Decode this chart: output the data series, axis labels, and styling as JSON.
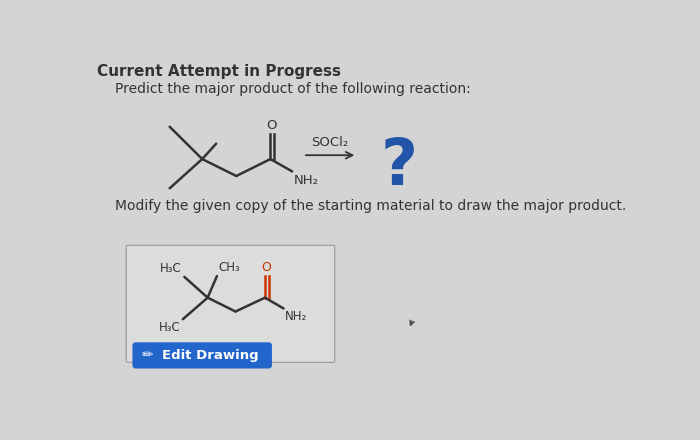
{
  "bg_color": "#d4d4d4",
  "title": "Current Attempt in Progress",
  "subtitle": "Predict the major product of the following reaction:",
  "modify_text": "Modify the given copy of the starting material to draw the major product.",
  "reagent": "SOCl₂",
  "question_mark": "?",
  "question_mark_color": "#2255aa",
  "edit_button_color": "#2266cc",
  "edit_button_text": "Edit Drawing",
  "edit_button_text_color": "#ffffff",
  "molecule_color": "#333333",
  "carbonyl_color": "#cc3300",
  "arrow_color": "#333333",
  "box_bg": "#e0e0e0",
  "box_edge": "#aaaaaa",
  "font_color": "#333333",
  "title_fontsize": 11,
  "subtitle_fontsize": 10,
  "body_fontsize": 10
}
